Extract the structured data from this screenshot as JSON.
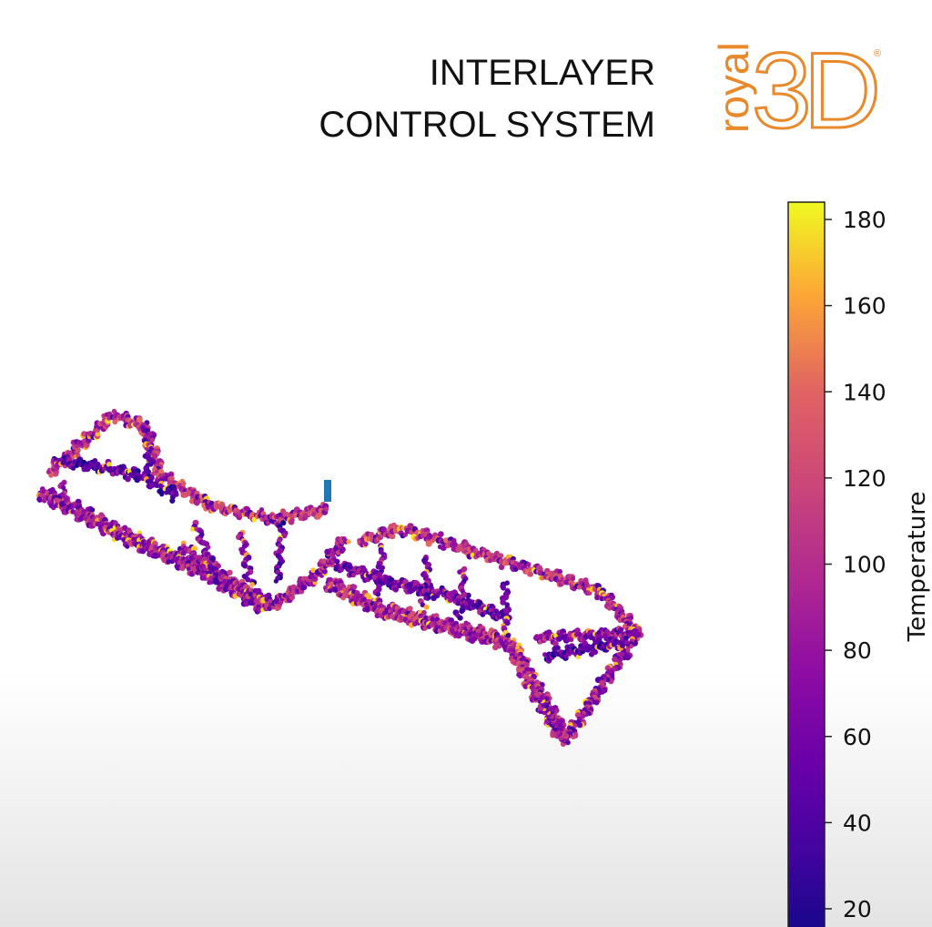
{
  "header": {
    "title_line1": "INTERLAYER",
    "title_line2": "CONTROL SYSTEM"
  },
  "logo": {
    "text_small": "royal",
    "text_large": "3D",
    "registered_mark": "®",
    "color": "#e8892c"
  },
  "chart_data": {
    "type": "scatter",
    "projection": "3d",
    "colormap": "plasma",
    "color_by": "Temperature",
    "grid": false,
    "title": "",
    "colorbar": {
      "label": "Temperature",
      "range": [
        13,
        185
      ],
      "ticks": [
        20,
        40,
        60,
        80,
        100,
        120,
        140,
        160,
        180
      ],
      "tick_labels": [
        "20",
        "40",
        "60",
        "80",
        "100",
        "120",
        "140",
        "160",
        "180"
      ],
      "placement": "right"
    },
    "marker_color": "#1f77b4"
  }
}
